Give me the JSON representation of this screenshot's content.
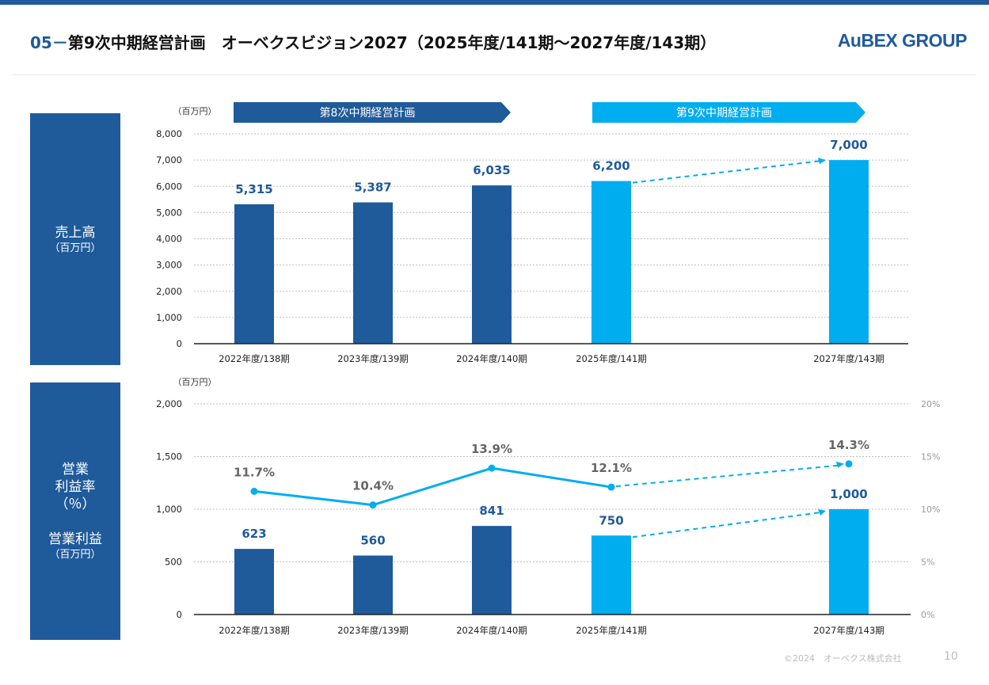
{
  "header": {
    "section_number": "05－",
    "title": "第9次中期経営計画　オーベクスビジョン2027（2025年度/141期～2027年度/143期）",
    "logo": "AuBEX GROUP"
  },
  "side_labels": {
    "sales": {
      "title": "売上高",
      "unit": "（百万円）"
    },
    "operating": {
      "line1": "営業",
      "line2": "利益率",
      "line3": "（％）",
      "line4": "営業利益",
      "unit": "（百万円）"
    }
  },
  "plan_banners": {
    "plan8": "第8次中期経営計画",
    "plan9": "第9次中期経営計画"
  },
  "colors": {
    "actual": "#1f5a9b",
    "plan": "#00adef",
    "line": "#00adef",
    "grid": "#bfbfbf"
  },
  "chart_data": [
    {
      "type": "bar",
      "title": "売上高",
      "unit_label": "（百万円）",
      "categories": [
        "2022年度/138期",
        "2023年度/139期",
        "2024年度/140期",
        "2025年度/141期",
        "2027年度/143期"
      ],
      "values": [
        5315,
        5387,
        6035,
        6200,
        7000
      ],
      "value_labels": [
        "5,315",
        "5,387",
        "6,035",
        "6,200",
        "7,000"
      ],
      "ylim": [
        0,
        8000
      ],
      "yticks": [
        0,
        1000,
        2000,
        3000,
        4000,
        5000,
        6000,
        7000,
        8000
      ],
      "ytick_labels": [
        "0",
        "1,000",
        "2,000",
        "3,000",
        "4,000",
        "5,000",
        "6,000",
        "7,000",
        "8,000"
      ],
      "planned_flags": [
        false,
        false,
        false,
        true,
        true
      ]
    },
    {
      "type": "bar+line",
      "title": "営業利益・営業利益率",
      "unit_label": "（百万円）",
      "categories": [
        "2022年度/138期",
        "2023年度/139期",
        "2024年度/140期",
        "2025年度/141期",
        "2027年度/143期"
      ],
      "series": [
        {
          "name": "営業利益",
          "type": "bar",
          "values": [
            623,
            560,
            841,
            750,
            1000
          ],
          "value_labels": [
            "623",
            "560",
            "841",
            "750",
            "1,000"
          ]
        },
        {
          "name": "営業利益率",
          "type": "line",
          "axis": "right",
          "values": [
            11.7,
            10.4,
            13.9,
            12.1,
            14.3
          ],
          "value_labels": [
            "11.7%",
            "10.4%",
            "13.9%",
            "12.1%",
            "14.3%"
          ]
        }
      ],
      "ylim": [
        0,
        2000
      ],
      "yticks": [
        0,
        500,
        1000,
        1500,
        2000
      ],
      "ytick_labels": [
        "0",
        "500",
        "1,000",
        "1,500",
        "2,000"
      ],
      "y2lim": [
        0,
        20
      ],
      "y2ticks": [
        0,
        5,
        10,
        15,
        20
      ],
      "y2tick_labels": [
        "0%",
        "5%",
        "10%",
        "15%",
        "20%"
      ],
      "planned_flags": [
        false,
        false,
        false,
        true,
        true
      ]
    }
  ],
  "footer": {
    "copyright": "©2024　オーベクス株式会社",
    "page": "10"
  }
}
